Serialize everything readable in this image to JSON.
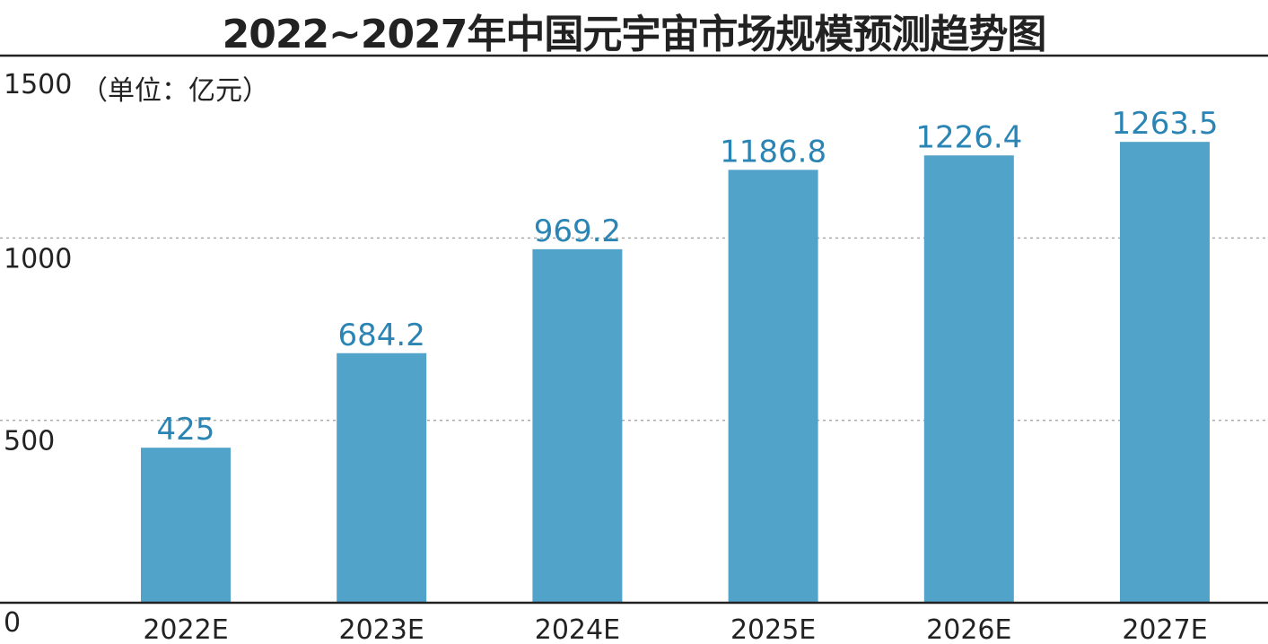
{
  "chart_data": {
    "type": "bar",
    "title": "2022~2027年中国元宇宙市场规模预测趋势图",
    "unit_label": "（单位：亿元）",
    "categories": [
      "2022E",
      "2023E",
      "2024E",
      "2025E",
      "2026E",
      "2027E"
    ],
    "values": [
      425,
      684.2,
      969.2,
      1186.8,
      1226.4,
      1263.5
    ],
    "value_labels": [
      "425",
      "684.2",
      "969.2",
      "1186.8",
      "1226.4",
      "1263.5"
    ],
    "ylim": [
      0,
      1500
    ],
    "yticks": [
      0,
      500,
      1000,
      1500
    ],
    "ytick_labels": [
      "0",
      "500",
      "1000",
      "1500"
    ],
    "grid": "horizontal dotted",
    "colors": {
      "bar": "#52a3c9",
      "label": "#2a84b4",
      "axis": "#222222",
      "grid": "#aaaaaa"
    }
  }
}
